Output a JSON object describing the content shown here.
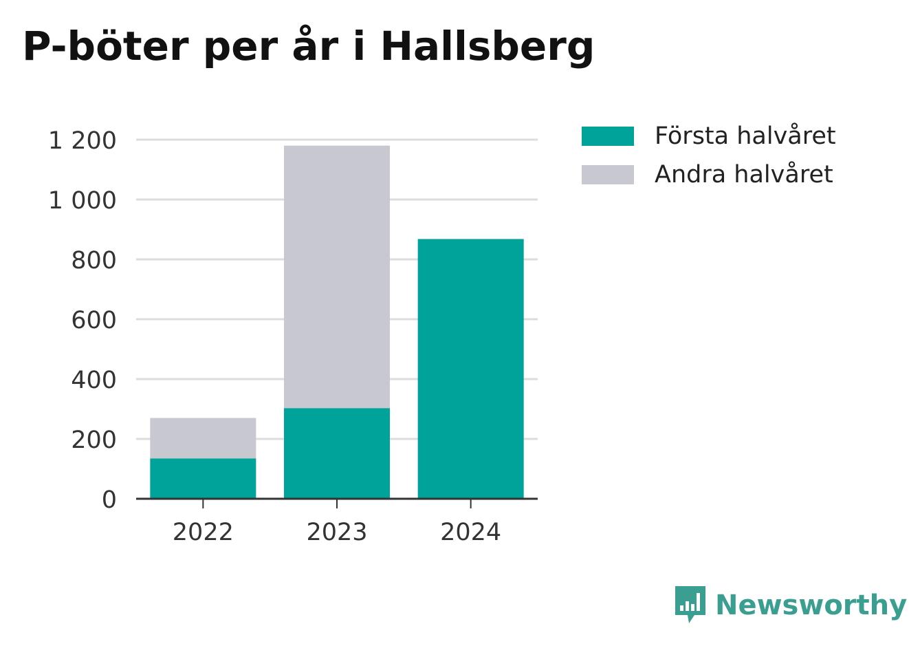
{
  "title": "P-böter per år i Hallsberg",
  "brand": {
    "name": "Newsworthy",
    "color": "#3a9e90",
    "icon": "newsworthy-logo-icon"
  },
  "chart_data": {
    "type": "bar",
    "stacked": true,
    "categories": [
      "2022",
      "2023",
      "2024"
    ],
    "series": [
      {
        "name": "Första halvåret",
        "color": "#00a39a",
        "values": [
          135,
          303,
          868
        ]
      },
      {
        "name": "Andra halvåret",
        "color": "#c8c8d0",
        "values": [
          135,
          877,
          0
        ]
      }
    ],
    "ylim": [
      0,
      1200
    ],
    "yticks": [
      0,
      200,
      400,
      600,
      800,
      1000,
      1200
    ],
    "ytick_labels": [
      "0",
      "200",
      "400",
      "600",
      "800",
      "1 000",
      "1 200"
    ],
    "grid": true,
    "legend_position": "top-right",
    "xlabel": "",
    "ylabel": ""
  }
}
